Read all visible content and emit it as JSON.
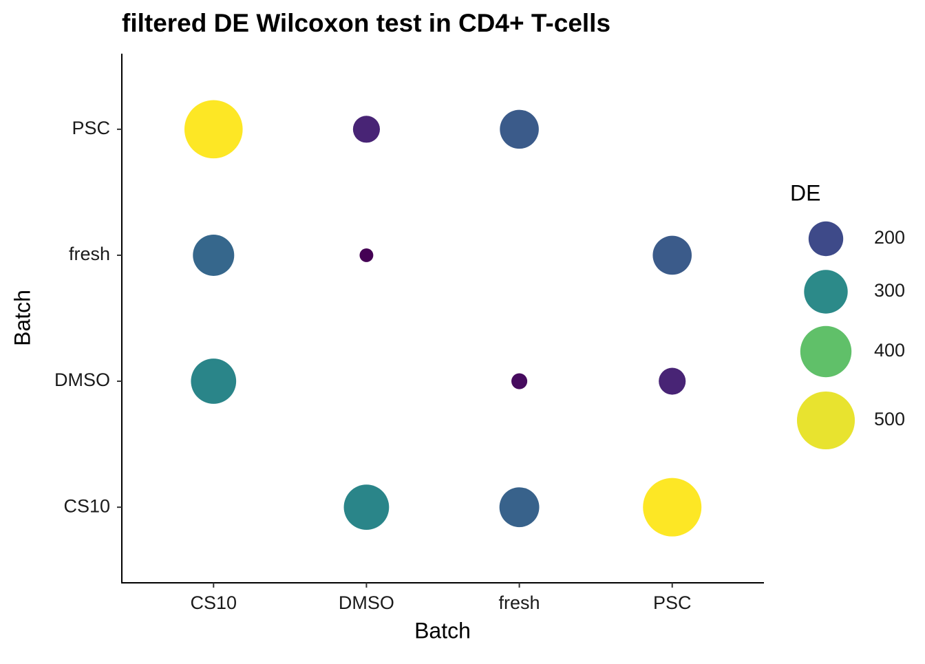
{
  "chart_data": {
    "type": "bubble",
    "title": "filtered DE Wilcoxon test in CD4+ T-cells",
    "xlabel": "Batch",
    "ylabel": "Batch",
    "x_categories": [
      "CS10",
      "DMSO",
      "fresh",
      "PSC"
    ],
    "y_categories": [
      "CS10",
      "DMSO",
      "fresh",
      "PSC"
    ],
    "points": {
      "x": [
        "CS10",
        "DMSO",
        "fresh",
        "CS10",
        "DMSO",
        "PSC",
        "CS10",
        "fresh",
        "PSC",
        "DMSO",
        "fresh",
        "PSC"
      ],
      "y": [
        "PSC",
        "PSC",
        "PSC",
        "fresh",
        "fresh",
        "fresh",
        "DMSO",
        "DMSO",
        "DMSO",
        "CS10",
        "CS10",
        "CS10"
      ],
      "values": [
        506,
        130,
        245,
        272,
        45,
        245,
        320,
        56,
        130,
        320,
        255,
        510
      ],
      "colors": [
        "#fde725",
        "#482475",
        "#3b5b8a",
        "#36678c",
        "#440154",
        "#3b5b8a",
        "#2a8589",
        "#460b5e",
        "#482475",
        "#2a8589",
        "#38628b",
        "#fde725"
      ]
    },
    "size_legend": {
      "title": "DE",
      "values": [
        200,
        300,
        400,
        500
      ],
      "colors": [
        "#3e4a89",
        "#2c8a89",
        "#60c069",
        "#e8e32f"
      ]
    }
  }
}
